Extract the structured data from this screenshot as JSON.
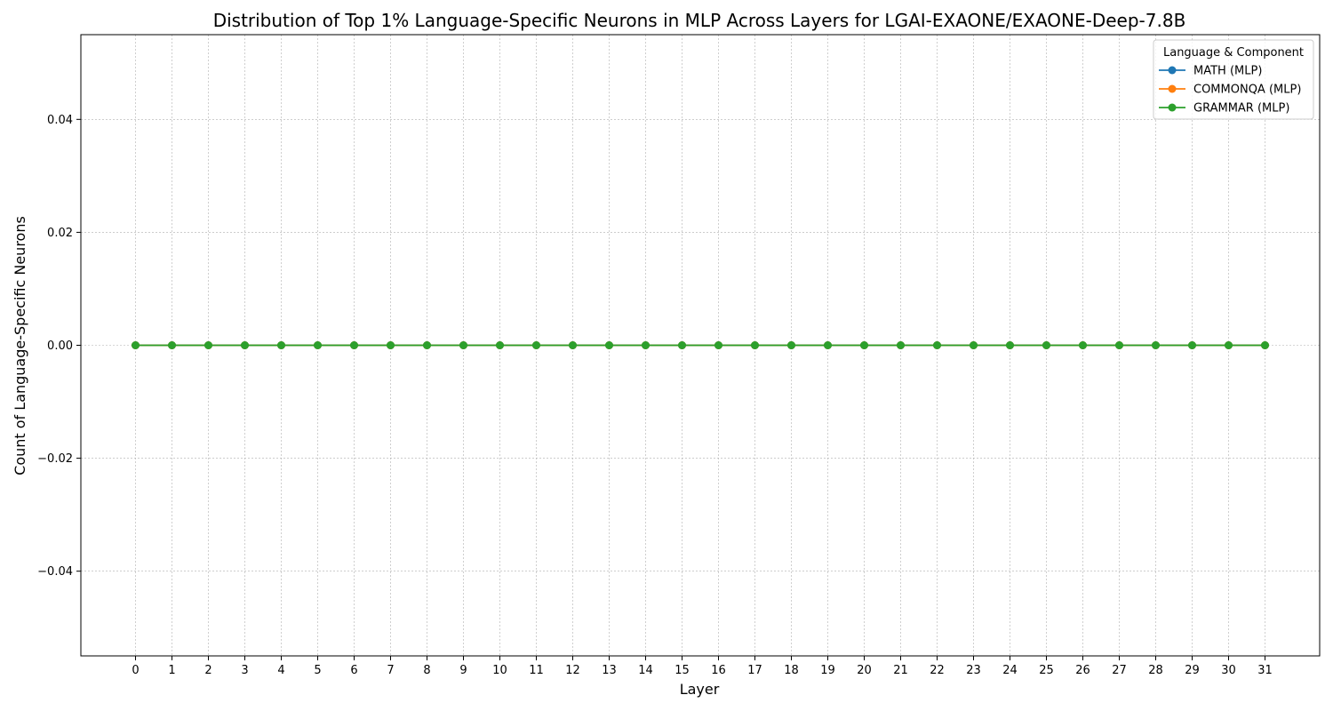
{
  "chart_data": {
    "type": "line",
    "title": "Distribution of Top 1% Language-Specific Neurons in MLP Across Layers for LGAI-EXAONE/EXAONE-Deep-7.8B",
    "xlabel": "Layer",
    "ylabel": "Count of Language-Specific Neurons",
    "x": [
      0,
      1,
      2,
      3,
      4,
      5,
      6,
      7,
      8,
      9,
      10,
      11,
      12,
      13,
      14,
      15,
      16,
      17,
      18,
      19,
      20,
      21,
      22,
      23,
      24,
      25,
      26,
      27,
      28,
      29,
      30,
      31
    ],
    "xlim": [
      -1.5,
      32.5
    ],
    "ylim": [
      -0.055,
      0.055
    ],
    "yticks": [
      -0.04,
      -0.02,
      0.0,
      0.02,
      0.04
    ],
    "ytick_labels": [
      "−0.04",
      "−0.02",
      "0.00",
      "0.02",
      "0.04"
    ],
    "grid": true,
    "legend": {
      "title": "Language & Component",
      "placement": "top-right"
    },
    "series": [
      {
        "name": "MATH (MLP)",
        "color": "#1f77b4",
        "marker": "circle",
        "values": [
          0,
          0,
          0,
          0,
          0,
          0,
          0,
          0,
          0,
          0,
          0,
          0,
          0,
          0,
          0,
          0,
          0,
          0,
          0,
          0,
          0,
          0,
          0,
          0,
          0,
          0,
          0,
          0,
          0,
          0,
          0,
          0
        ]
      },
      {
        "name": "COMMONQA (MLP)",
        "color": "#ff7f0e",
        "marker": "circle",
        "values": [
          0,
          0,
          0,
          0,
          0,
          0,
          0,
          0,
          0,
          0,
          0,
          0,
          0,
          0,
          0,
          0,
          0,
          0,
          0,
          0,
          0,
          0,
          0,
          0,
          0,
          0,
          0,
          0,
          0,
          0,
          0,
          0
        ]
      },
      {
        "name": "GRAMMAR (MLP)",
        "color": "#2ca02c",
        "marker": "circle",
        "values": [
          0,
          0,
          0,
          0,
          0,
          0,
          0,
          0,
          0,
          0,
          0,
          0,
          0,
          0,
          0,
          0,
          0,
          0,
          0,
          0,
          0,
          0,
          0,
          0,
          0,
          0,
          0,
          0,
          0,
          0,
          0,
          0
        ]
      }
    ]
  }
}
